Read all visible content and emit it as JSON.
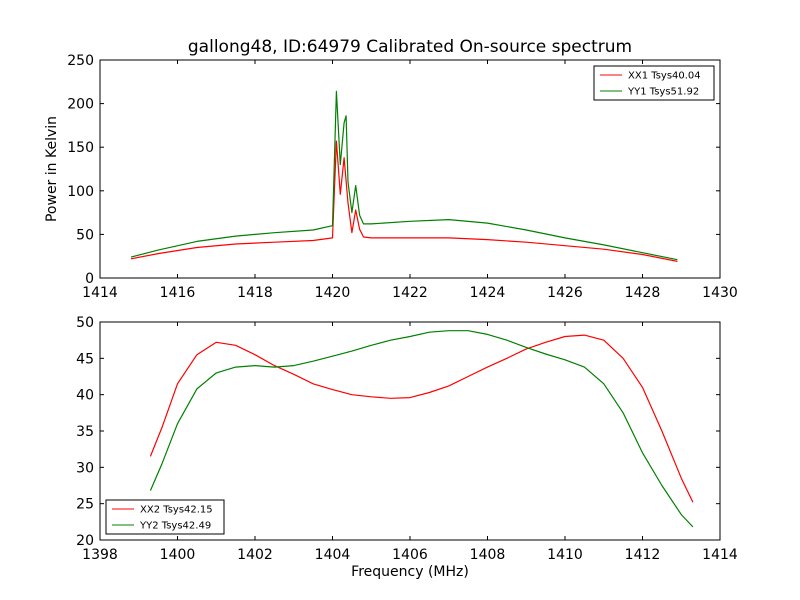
{
  "figure": {
    "title": "gallong48, ID:64979 Calibrated On-source spectrum"
  },
  "chart_data": [
    {
      "type": "line",
      "xlabel": "",
      "ylabel": "Power in Kelvin",
      "xlim": [
        1414,
        1430
      ],
      "ylim": [
        0,
        250
      ],
      "xticks": [
        1414,
        1416,
        1418,
        1420,
        1422,
        1424,
        1426,
        1428,
        1430
      ],
      "yticks": [
        0,
        50,
        100,
        150,
        200,
        250
      ],
      "legend_position": "upper right",
      "series": [
        {
          "name": "XX1 Tsys40.04",
          "color": "#ff0000",
          "x": [
            1414.8,
            1415.5,
            1416.5,
            1417.5,
            1418.5,
            1419.5,
            1420.0,
            1420.1,
            1420.2,
            1420.3,
            1420.4,
            1420.5,
            1420.6,
            1420.7,
            1420.8,
            1421.0,
            1422.0,
            1423.0,
            1424.0,
            1425.0,
            1426.0,
            1427.0,
            1428.0,
            1428.9
          ],
          "y": [
            22,
            28,
            35,
            39,
            41,
            43,
            46,
            157,
            96,
            138,
            86,
            52,
            78,
            56,
            47,
            46,
            46,
            46,
            44,
            41,
            37,
            33,
            27,
            19
          ]
        },
        {
          "name": "YY1 Tsys51.92",
          "color": "#008000",
          "x": [
            1414.8,
            1415.5,
            1416.5,
            1417.5,
            1418.5,
            1419.5,
            1420.0,
            1420.1,
            1420.2,
            1420.3,
            1420.35,
            1420.4,
            1420.5,
            1420.6,
            1420.7,
            1420.8,
            1421.0,
            1422.0,
            1423.0,
            1424.0,
            1425.0,
            1426.0,
            1427.0,
            1428.0,
            1428.9
          ],
          "y": [
            24,
            32,
            42,
            48,
            52,
            55,
            60,
            214,
            130,
            178,
            186,
            110,
            75,
            106,
            72,
            62,
            62,
            65,
            67,
            63,
            55,
            46,
            38,
            29,
            21
          ]
        }
      ]
    },
    {
      "type": "line",
      "xlabel": "Frequency (MHz)",
      "ylabel": "",
      "xlim": [
        1398,
        1414
      ],
      "ylim": [
        20,
        50
      ],
      "xticks": [
        1398,
        1400,
        1402,
        1404,
        1406,
        1408,
        1410,
        1412,
        1414
      ],
      "yticks": [
        20,
        25,
        30,
        35,
        40,
        45,
        50
      ],
      "legend_position": "lower left",
      "series": [
        {
          "name": "XX2 Tsys42.15",
          "color": "#ff0000",
          "x": [
            1399.3,
            1399.6,
            1400.0,
            1400.5,
            1401.0,
            1401.5,
            1402.0,
            1402.5,
            1403.0,
            1403.5,
            1404.0,
            1404.5,
            1405.0,
            1405.5,
            1406.0,
            1406.5,
            1407.0,
            1407.5,
            1408.0,
            1408.5,
            1409.0,
            1409.5,
            1410.0,
            1410.5,
            1411.0,
            1411.5,
            1412.0,
            1412.5,
            1413.0,
            1413.3
          ],
          "y": [
            31.5,
            35.5,
            41.5,
            45.5,
            47.2,
            46.8,
            45.5,
            44.0,
            42.8,
            41.5,
            40.7,
            40.0,
            39.7,
            39.5,
            39.6,
            40.3,
            41.2,
            42.5,
            43.8,
            45.0,
            46.3,
            47.2,
            48.0,
            48.2,
            47.5,
            45.0,
            41.0,
            35.0,
            28.5,
            25.2
          ]
        },
        {
          "name": "YY2 Tsys42.49",
          "color": "#008000",
          "x": [
            1399.3,
            1399.6,
            1400.0,
            1400.5,
            1401.0,
            1401.5,
            1402.0,
            1402.5,
            1403.0,
            1403.5,
            1404.0,
            1404.5,
            1405.0,
            1405.5,
            1406.0,
            1406.5,
            1407.0,
            1407.5,
            1408.0,
            1408.5,
            1409.0,
            1409.5,
            1410.0,
            1410.5,
            1411.0,
            1411.5,
            1412.0,
            1412.5,
            1413.0,
            1413.3
          ],
          "y": [
            26.8,
            30.5,
            36.0,
            40.8,
            43.0,
            43.8,
            44.0,
            43.8,
            44.0,
            44.6,
            45.3,
            46.0,
            46.8,
            47.5,
            48.0,
            48.6,
            48.8,
            48.8,
            48.3,
            47.5,
            46.5,
            45.6,
            44.8,
            43.8,
            41.5,
            37.5,
            32.0,
            27.5,
            23.5,
            21.8
          ]
        }
      ]
    }
  ]
}
